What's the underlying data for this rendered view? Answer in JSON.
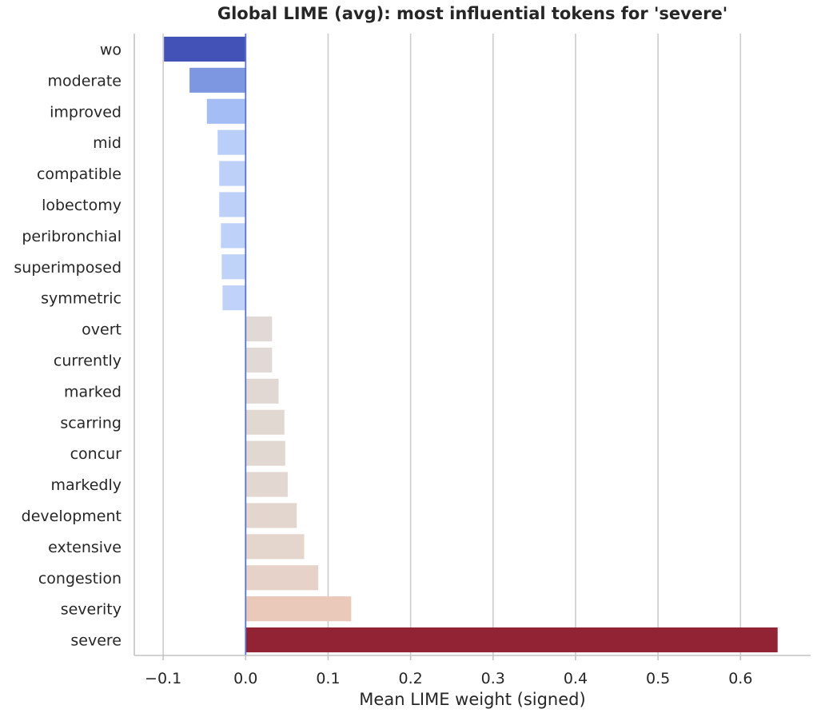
{
  "chart_data": {
    "type": "bar",
    "orientation": "horizontal",
    "title": "Global LIME (avg): most influential tokens for 'severe'",
    "xlabel": "Mean LIME weight (signed)",
    "ylabel": "",
    "xlim": [
      -0.135,
      0.685
    ],
    "xticks": [
      -0.1,
      0.0,
      0.1,
      0.2,
      0.3,
      0.4,
      0.5,
      0.6
    ],
    "xtick_labels": [
      "−0.1",
      "0.0",
      "0.1",
      "0.2",
      "0.3",
      "0.4",
      "0.5",
      "0.6"
    ],
    "grid": "vertical",
    "reference_line": 0.0,
    "categories": [
      "wo",
      "moderate",
      "improved",
      "mid",
      "compatible",
      "lobectomy",
      "peribronchial",
      "superimposed",
      "symmetric",
      "overt",
      "currently",
      "marked",
      "scarring",
      "concur",
      "markedly",
      "development",
      "extensive",
      "congestion",
      "severity",
      "severe"
    ],
    "values": [
      -0.099,
      -0.068,
      -0.047,
      -0.034,
      -0.032,
      -0.032,
      -0.03,
      -0.029,
      -0.028,
      0.032,
      0.032,
      0.04,
      0.047,
      0.048,
      0.051,
      0.062,
      0.071,
      0.088,
      0.128,
      0.645
    ],
    "colors": [
      "#4352b6",
      "#7d98e0",
      "#a4bef5",
      "#b9cff9",
      "#bcd0f8",
      "#bcd0f8",
      "#bed1f8",
      "#bfd2f7",
      "#c0d2f7",
      "#e0d9d6",
      "#e0d9d6",
      "#e1d8d3",
      "#e2d8d2",
      "#e2d8d2",
      "#e2d7d1",
      "#e3d6cf",
      "#e4d5cd",
      "#e6d2c8",
      "#eac9bb",
      "#912334"
    ]
  }
}
